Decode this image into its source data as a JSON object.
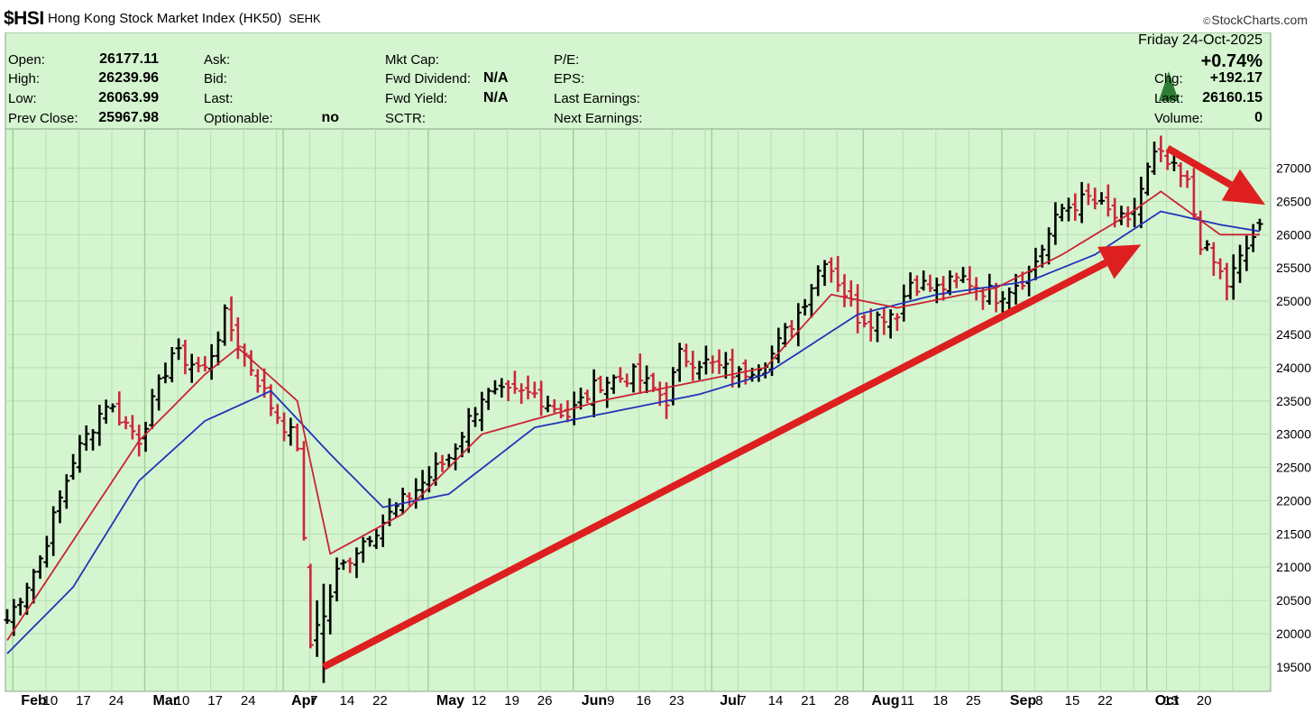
{
  "header": {
    "symbol": "$HSI",
    "title": "Hong Kong Stock Market Index (HK50)",
    "exchange": "SEHK",
    "watermark": "StockCharts.com"
  },
  "info_panel": {
    "col1": [
      {
        "label": "Open:",
        "value": "26177.11"
      },
      {
        "label": "High:",
        "value": "26239.96"
      },
      {
        "label": "Low:",
        "value": "26063.99"
      },
      {
        "label": "Prev Close:",
        "value": "25967.98"
      }
    ],
    "col2": [
      {
        "label": "Ask:",
        "value": ""
      },
      {
        "label": "Bid:",
        "value": ""
      },
      {
        "label": "Last:",
        "value": ""
      },
      {
        "label": "Optionable:",
        "value": "no"
      }
    ],
    "col3": [
      {
        "label": "Mkt Cap:",
        "value": ""
      },
      {
        "label": "Fwd Dividend:",
        "value": "N/A"
      },
      {
        "label": "Fwd Yield:",
        "value": "N/A"
      },
      {
        "label": "SCTR:",
        "value": ""
      }
    ],
    "col4": [
      {
        "label": "P/E:",
        "value": ""
      },
      {
        "label": "EPS:",
        "value": ""
      },
      {
        "label": "Last Earnings:",
        "value": ""
      },
      {
        "label": "Next Earnings:",
        "value": ""
      }
    ],
    "date": "Friday  24-Oct-2025",
    "pct_change": "+0.74%",
    "chg_label": "Chg:",
    "chg_value": "+192.17",
    "last_label": "Last:",
    "last_value": "26160.15",
    "volume_label": "Volume:",
    "volume_value": "0"
  },
  "colors": {
    "background": "#d4f5cf",
    "up_bar": "#000000",
    "down_bar": "#d0243c",
    "ma_short": "#cc2233",
    "ma_long": "#2233bb",
    "arrow": "#dd1f1f",
    "up_triangle": "#2e7d32"
  },
  "chart_data": {
    "type": "ohlc",
    "ylim": [
      19200,
      27550
    ],
    "y_ticks": [
      19500,
      20000,
      20500,
      21000,
      21500,
      22000,
      22500,
      23000,
      23500,
      24000,
      24500,
      25000,
      25500,
      26000,
      26500,
      27000
    ],
    "x_tick_labels": [
      {
        "label": "Feb",
        "month": true
      },
      {
        "label": "10"
      },
      {
        "label": "17"
      },
      {
        "label": "24"
      },
      {
        "label": "Mar",
        "month": true
      },
      {
        "label": "10"
      },
      {
        "label": "17"
      },
      {
        "label": "24"
      },
      {
        "label": "Apr",
        "month": true
      },
      {
        "label": "7"
      },
      {
        "label": "14"
      },
      {
        "label": "22"
      },
      {
        "label": "May",
        "month": true
      },
      {
        "label": "12"
      },
      {
        "label": "19"
      },
      {
        "label": "26"
      },
      {
        "label": "Jun",
        "month": true
      },
      {
        "label": "9"
      },
      {
        "label": "16"
      },
      {
        "label": "23"
      },
      {
        "label": "Jul",
        "month": true
      },
      {
        "label": "7"
      },
      {
        "label": "14"
      },
      {
        "label": "21"
      },
      {
        "label": "28"
      },
      {
        "label": "Aug",
        "month": true
      },
      {
        "label": "11"
      },
      {
        "label": "18"
      },
      {
        "label": "25"
      },
      {
        "label": "Sep",
        "month": true
      },
      {
        "label": "8"
      },
      {
        "label": "15"
      },
      {
        "label": "22"
      },
      {
        "label": "Oct",
        "month": true
      },
      {
        "label": "13"
      },
      {
        "label": "20"
      }
    ],
    "close_keypoints": [
      {
        "date": "2025-01-31",
        "close": 20200
      },
      {
        "date": "2025-02-07",
        "close": 21130
      },
      {
        "date": "2025-02-14",
        "close": 22620
      },
      {
        "date": "2025-02-21",
        "close": 23480
      },
      {
        "date": "2025-02-28",
        "close": 22940
      },
      {
        "date": "2025-03-07",
        "close": 24230
      },
      {
        "date": "2025-03-14",
        "close": 23960
      },
      {
        "date": "2025-03-19",
        "close": 24770
      },
      {
        "date": "2025-03-28",
        "close": 23430
      },
      {
        "date": "2025-04-03",
        "close": 22850
      },
      {
        "date": "2025-04-07",
        "close": 19830
      },
      {
        "date": "2025-04-08",
        "close": 20130
      },
      {
        "date": "2025-04-09",
        "close": 20260
      },
      {
        "date": "2025-04-11",
        "close": 20910
      },
      {
        "date": "2025-04-17",
        "close": 21400
      },
      {
        "date": "2025-04-25",
        "close": 21980
      },
      {
        "date": "2025-05-06",
        "close": 22660
      },
      {
        "date": "2025-05-13",
        "close": 23580
      },
      {
        "date": "2025-05-23",
        "close": 23600
      },
      {
        "date": "2025-05-30",
        "close": 23290
      },
      {
        "date": "2025-06-06",
        "close": 23790
      },
      {
        "date": "2025-06-13",
        "close": 23890
      },
      {
        "date": "2025-06-20",
        "close": 23530
      },
      {
        "date": "2025-06-24",
        "close": 24180
      },
      {
        "date": "2025-06-30",
        "close": 24070
      },
      {
        "date": "2025-07-07",
        "close": 23890
      },
      {
        "date": "2025-07-14",
        "close": 24200
      },
      {
        "date": "2025-07-18",
        "close": 24830
      },
      {
        "date": "2025-07-24",
        "close": 25670
      },
      {
        "date": "2025-07-31",
        "close": 24770
      },
      {
        "date": "2025-08-04",
        "close": 24730
      },
      {
        "date": "2025-08-08",
        "close": 24860
      },
      {
        "date": "2025-08-12",
        "close": 25300
      },
      {
        "date": "2025-08-18",
        "close": 25180
      },
      {
        "date": "2025-08-22",
        "close": 25340
      },
      {
        "date": "2025-08-29",
        "close": 25080
      },
      {
        "date": "2025-09-05",
        "close": 25420
      },
      {
        "date": "2025-09-12",
        "close": 26390
      },
      {
        "date": "2025-09-18",
        "close": 26540
      },
      {
        "date": "2025-09-26",
        "close": 26130
      },
      {
        "date": "2025-10-02",
        "close": 27250
      },
      {
        "date": "2025-10-09",
        "close": 26750
      },
      {
        "date": "2025-10-13",
        "close": 25890
      },
      {
        "date": "2025-10-17",
        "close": 25250
      },
      {
        "date": "2025-10-24",
        "close": 26160.15
      }
    ],
    "last_bar": {
      "date": "2025-10-24",
      "open": 26177.11,
      "high": 26239.96,
      "low": 26063.99,
      "close": 26160.15
    },
    "ma_short_keypoints": [
      {
        "date": "2025-01-31",
        "value": 19900
      },
      {
        "date": "2025-02-14",
        "value": 21400
      },
      {
        "date": "2025-02-28",
        "value": 22900
      },
      {
        "date": "2025-03-14",
        "value": 23900
      },
      {
        "date": "2025-03-21",
        "value": 24300
      },
      {
        "date": "2025-04-03",
        "value": 23500
      },
      {
        "date": "2025-04-10",
        "value": 21200
      },
      {
        "date": "2025-04-25",
        "value": 21800
      },
      {
        "date": "2025-05-13",
        "value": 23000
      },
      {
        "date": "2025-06-06",
        "value": 23500
      },
      {
        "date": "2025-06-20",
        "value": 23700
      },
      {
        "date": "2025-07-11",
        "value": 24000
      },
      {
        "date": "2025-07-25",
        "value": 25100
      },
      {
        "date": "2025-08-08",
        "value": 24900
      },
      {
        "date": "2025-08-29",
        "value": 25200
      },
      {
        "date": "2025-09-12",
        "value": 25700
      },
      {
        "date": "2025-09-26",
        "value": 26300
      },
      {
        "date": "2025-10-03",
        "value": 26650
      },
      {
        "date": "2025-10-16",
        "value": 26000
      },
      {
        "date": "2025-10-24",
        "value": 26000
      }
    ],
    "ma_long_keypoints": [
      {
        "date": "2025-01-31",
        "value": 19700
      },
      {
        "date": "2025-02-14",
        "value": 20700
      },
      {
        "date": "2025-02-28",
        "value": 22300
      },
      {
        "date": "2025-03-14",
        "value": 23200
      },
      {
        "date": "2025-03-28",
        "value": 23650
      },
      {
        "date": "2025-04-10",
        "value": 22700
      },
      {
        "date": "2025-04-22",
        "value": 21900
      },
      {
        "date": "2025-05-06",
        "value": 22100
      },
      {
        "date": "2025-05-23",
        "value": 23100
      },
      {
        "date": "2025-06-06",
        "value": 23300
      },
      {
        "date": "2025-06-27",
        "value": 23600
      },
      {
        "date": "2025-07-11",
        "value": 23900
      },
      {
        "date": "2025-07-31",
        "value": 24800
      },
      {
        "date": "2025-08-18",
        "value": 25100
      },
      {
        "date": "2025-09-05",
        "value": 25300
      },
      {
        "date": "2025-09-19",
        "value": 25700
      },
      {
        "date": "2025-10-03",
        "value": 26350
      },
      {
        "date": "2025-10-16",
        "value": 26150
      },
      {
        "date": "2025-10-24",
        "value": 26050
      }
    ],
    "annotations": [
      {
        "type": "arrow",
        "from": {
          "date": "2025-04-09",
          "value": 19500
        },
        "to": {
          "date": "2025-09-30",
          "value": 25850
        }
      },
      {
        "type": "arrow",
        "from": {
          "date": "2025-10-06",
          "value": 27300
        },
        "to": {
          "date": "2025-10-24",
          "value": 26450
        }
      }
    ],
    "grid": true,
    "y_axis_side": "right"
  }
}
